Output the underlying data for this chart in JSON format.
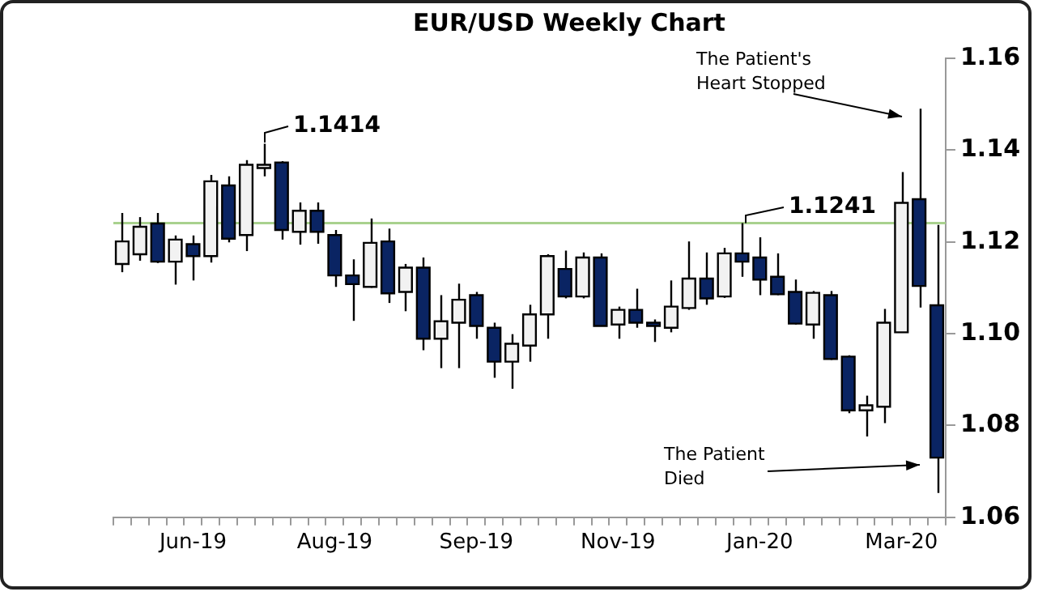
{
  "chart_data": {
    "type": "candlestick",
    "title": "EUR/USD Weekly Chart",
    "categories": [
      null,
      null,
      null,
      null,
      "Jun-19",
      null,
      null,
      null,
      null,
      null,
      null,
      null,
      "Aug-19",
      null,
      null,
      null,
      null,
      null,
      null,
      null,
      "Sep-19",
      null,
      null,
      null,
      null,
      null,
      null,
      null,
      "Nov-19",
      null,
      null,
      null,
      null,
      null,
      null,
      null,
      "Jan-20",
      null,
      null,
      null,
      null,
      null,
      null,
      null,
      "Mar-20",
      null,
      null
    ],
    "ohlc": [
      [
        1.1152,
        1.1263,
        1.1134,
        1.1201
      ],
      [
        1.1173,
        1.1254,
        1.1159,
        1.1233
      ],
      [
        1.124,
        1.1263,
        1.1154,
        1.1157
      ],
      [
        1.1157,
        1.1214,
        1.1107,
        1.1205
      ],
      [
        1.1195,
        1.1214,
        1.1116,
        1.1169
      ],
      [
        1.1169,
        1.1346,
        1.1155,
        1.1332
      ],
      [
        1.1323,
        1.1343,
        1.1199,
        1.1207
      ],
      [
        1.1215,
        1.1378,
        1.118,
        1.1368
      ],
      [
        1.1361,
        1.1414,
        1.1343,
        1.1368
      ],
      [
        1.1373,
        1.1376,
        1.1205,
        1.1226
      ],
      [
        1.1222,
        1.1286,
        1.1194,
        1.1268
      ],
      [
        1.1268,
        1.1286,
        1.1196,
        1.1222
      ],
      [
        1.1215,
        1.1226,
        1.1102,
        1.1127
      ],
      [
        1.1127,
        1.1162,
        1.1028,
        1.1108
      ],
      [
        1.1102,
        1.1251,
        1.11,
        1.1198
      ],
      [
        1.1201,
        1.1229,
        1.1067,
        1.1088
      ],
      [
        1.1091,
        1.1152,
        1.1049,
        1.1144
      ],
      [
        1.1144,
        1.1166,
        1.0964,
        1.0989
      ],
      [
        1.0989,
        1.1084,
        1.0925,
        1.1027
      ],
      [
        1.1024,
        1.1109,
        1.0925,
        1.1074
      ],
      [
        1.1084,
        1.1091,
        1.0989,
        1.1017
      ],
      [
        1.1013,
        1.1024,
        1.0904,
        1.0939
      ],
      [
        1.0939,
        1.0999,
        1.088,
        1.0978
      ],
      [
        1.0974,
        1.1063,
        1.0939,
        1.1042
      ],
      [
        1.1042,
        1.1173,
        1.0989,
        1.1169
      ],
      [
        1.1141,
        1.1181,
        1.1077,
        1.1081
      ],
      [
        1.1081,
        1.1177,
        1.1077,
        1.1166
      ],
      [
        1.1166,
        1.1175,
        1.1017,
        1.1017
      ],
      [
        1.102,
        1.1059,
        1.0989,
        1.1052
      ],
      [
        1.1052,
        1.1098,
        1.1013,
        1.1024
      ],
      [
        1.1024,
        1.1031,
        1.0982,
        1.1017
      ],
      [
        1.1013,
        1.1116,
        1.1003,
        1.1059
      ],
      [
        1.1056,
        1.1201,
        1.1052,
        1.112
      ],
      [
        1.112,
        1.1177,
        1.1063,
        1.1077
      ],
      [
        1.1081,
        1.1187,
        1.1078,
        1.1175
      ],
      [
        1.1175,
        1.1241,
        1.1124,
        1.1157
      ],
      [
        1.1166,
        1.121,
        1.1084,
        1.1118
      ],
      [
        1.1124,
        1.1175,
        1.1084,
        1.1086
      ],
      [
        1.1091,
        1.1118,
        1.102,
        1.1022
      ],
      [
        1.102,
        1.1093,
        1.0989,
        1.1089
      ],
      [
        1.1084,
        1.1093,
        1.0943,
        1.0945
      ],
      [
        1.095,
        1.0953,
        1.0827,
        1.0833
      ],
      [
        1.0833,
        1.0865,
        1.0776,
        1.0844
      ],
      [
        1.0841,
        1.1054,
        1.0805,
        1.1024
      ],
      [
        1.1003,
        1.1352,
        1.1003,
        1.1285
      ],
      [
        1.1293,
        1.149,
        1.1057,
        1.1104
      ],
      [
        1.1062,
        1.1237,
        1.0653,
        1.073
      ]
    ],
    "colors": [
      "#f2f2f2",
      "#f2f2f2",
      "#0a2463",
      "#f2f2f2",
      "#0a2463",
      "#f2f2f2",
      "#0a2463",
      "#f2f2f2",
      "#f2f2f2",
      "#0a2463",
      "#f2f2f2",
      "#0a2463",
      "#0a2463",
      "#0a2463",
      "#f2f2f2",
      "#0a2463",
      "#f2f2f2",
      "#0a2463",
      "#f2f2f2",
      "#f2f2f2",
      "#0a2463",
      "#0a2463",
      "#f2f2f2",
      "#f2f2f2",
      "#f2f2f2",
      "#0a2463",
      "#f2f2f2",
      "#0a2463",
      "#f2f2f2",
      "#0a2463",
      "#0a2463",
      "#f2f2f2",
      "#f2f2f2",
      "#0a2463",
      "#f2f2f2",
      "#0a2463",
      "#0a2463",
      "#0a2463",
      "#0a2463",
      "#f2f2f2",
      "#0a2463",
      "#0a2463",
      "#f2f2f2",
      "#f2f2f2",
      "#f2f2f2",
      "#0a2463",
      "#0a2463"
    ],
    "ylim": [
      1.06,
      1.16
    ],
    "yticks": [
      1.06,
      1.08,
      {
        "value": 1.1,
        "label": "1.10"
      },
      1.12,
      1.14,
      1.16
    ],
    "ref_lines": [
      {
        "axis": "y",
        "value": 1.1241,
        "color": "#a9d18e"
      }
    ],
    "annotations": [
      "1.1414",
      {
        "text": "1.1241",
        "y": 1.1241
      },
      "The Patient's Heart Stopped",
      "The Patient Died"
    ]
  }
}
